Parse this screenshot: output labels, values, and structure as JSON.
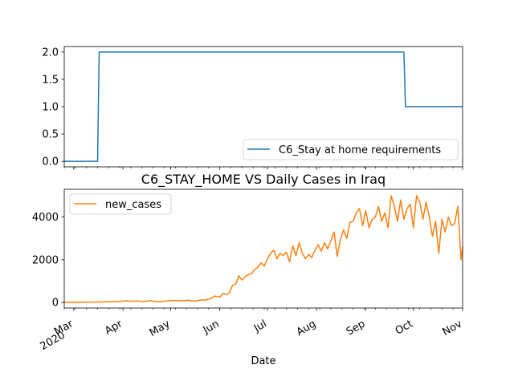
{
  "chart_data": [
    {
      "type": "line",
      "title": "",
      "xlabel": "",
      "ylabel": "",
      "ylim": [
        -0.1,
        2.1
      ],
      "yticks": [
        "0.0",
        "0.5",
        "1.0",
        "1.5",
        "2.0"
      ],
      "ytick_values": [
        0,
        0.5,
        1.0,
        1.5,
        2.0
      ],
      "legend_position": "lower right",
      "grid": false,
      "series": [
        {
          "name": "C6_Stay at home requirements",
          "color": "#1f77b4",
          "points": [
            [
              "2020-02-24",
              0
            ],
            [
              "2020-03-16",
              0
            ],
            [
              "2020-03-17",
              2
            ],
            [
              "2020-09-25",
              2
            ],
            [
              "2020-09-26",
              1
            ],
            [
              "2020-11-01",
              1
            ]
          ]
        }
      ]
    },
    {
      "type": "line",
      "title": "C6_STAY_HOME VS Daily Cases in Iraq",
      "xlabel": "Date",
      "ylabel": "",
      "ylim": [
        -260,
        5300
      ],
      "yticks": [
        "0",
        "2000",
        "4000"
      ],
      "ytick_values": [
        0,
        2000,
        4000
      ],
      "xlim": [
        "2020-02-24",
        "2020-11-01"
      ],
      "xticks": [
        "Mar\n2020",
        "Apr",
        "May",
        "Jun",
        "Jul",
        "Aug",
        "Sep",
        "Oct",
        "Nov"
      ],
      "xtick_dates": [
        "2020-03-01",
        "2020-04-01",
        "2020-05-01",
        "2020-06-01",
        "2020-07-01",
        "2020-08-01",
        "2020-09-01",
        "2020-10-01",
        "2020-11-01"
      ],
      "legend_position": "upper left",
      "grid": false,
      "series": [
        {
          "name": "new_cases",
          "color": "#ff7f0e",
          "points": [
            [
              "2020-02-24",
              1
            ],
            [
              "2020-03-01",
              5
            ],
            [
              "2020-03-08",
              10
            ],
            [
              "2020-03-15",
              20
            ],
            [
              "2020-03-22",
              25
            ],
            [
              "2020-03-29",
              40
            ],
            [
              "2020-04-03",
              80
            ],
            [
              "2020-04-06",
              55
            ],
            [
              "2020-04-10",
              70
            ],
            [
              "2020-04-14",
              40
            ],
            [
              "2020-04-18",
              90
            ],
            [
              "2020-04-22",
              35
            ],
            [
              "2020-04-26",
              50
            ],
            [
              "2020-04-30",
              80
            ],
            [
              "2020-05-04",
              95
            ],
            [
              "2020-05-08",
              80
            ],
            [
              "2020-05-12",
              100
            ],
            [
              "2020-05-16",
              60
            ],
            [
              "2020-05-20",
              120
            ],
            [
              "2020-05-23",
              110
            ],
            [
              "2020-05-26",
              180
            ],
            [
              "2020-05-29",
              300
            ],
            [
              "2020-06-01",
              250
            ],
            [
              "2020-06-03",
              420
            ],
            [
              "2020-06-05",
              370
            ],
            [
              "2020-06-07",
              450
            ],
            [
              "2020-06-09",
              800
            ],
            [
              "2020-06-11",
              850
            ],
            [
              "2020-06-13",
              1250
            ],
            [
              "2020-06-15",
              1050
            ],
            [
              "2020-06-17",
              1200
            ],
            [
              "2020-06-19",
              1300
            ],
            [
              "2020-06-21",
              1350
            ],
            [
              "2020-06-23",
              1550
            ],
            [
              "2020-06-25",
              1650
            ],
            [
              "2020-06-27",
              1850
            ],
            [
              "2020-06-29",
              1700
            ],
            [
              "2020-07-01",
              2050
            ],
            [
              "2020-07-03",
              2300
            ],
            [
              "2020-07-05",
              2450
            ],
            [
              "2020-07-07",
              2050
            ],
            [
              "2020-07-09",
              2300
            ],
            [
              "2020-07-11",
              2200
            ],
            [
              "2020-07-13",
              2350
            ],
            [
              "2020-07-15",
              1900
            ],
            [
              "2020-07-17",
              2650
            ],
            [
              "2020-07-19",
              2200
            ],
            [
              "2020-07-21",
              2800
            ],
            [
              "2020-07-23",
              2300
            ],
            [
              "2020-07-25",
              2050
            ],
            [
              "2020-07-27",
              2250
            ],
            [
              "2020-07-29",
              2100
            ],
            [
              "2020-07-31",
              2450
            ],
            [
              "2020-08-02",
              2700
            ],
            [
              "2020-08-04",
              2400
            ],
            [
              "2020-08-06",
              2800
            ],
            [
              "2020-08-08",
              2500
            ],
            [
              "2020-08-10",
              2900
            ],
            [
              "2020-08-12",
              3300
            ],
            [
              "2020-08-14",
              2150
            ],
            [
              "2020-08-16",
              2950
            ],
            [
              "2020-08-18",
              3400
            ],
            [
              "2020-08-20",
              3000
            ],
            [
              "2020-08-22",
              3750
            ],
            [
              "2020-08-24",
              3800
            ],
            [
              "2020-08-26",
              4200
            ],
            [
              "2020-08-28",
              4400
            ],
            [
              "2020-08-30",
              3600
            ],
            [
              "2020-09-01",
              4300
            ],
            [
              "2020-09-03",
              3500
            ],
            [
              "2020-09-05",
              3900
            ],
            [
              "2020-09-07",
              4000
            ],
            [
              "2020-09-09",
              4500
            ],
            [
              "2020-09-11",
              3800
            ],
            [
              "2020-09-13",
              4200
            ],
            [
              "2020-09-15",
              3500
            ],
            [
              "2020-09-17",
              5000
            ],
            [
              "2020-09-19",
              4500
            ],
            [
              "2020-09-21",
              3800
            ],
            [
              "2020-09-23",
              4800
            ],
            [
              "2020-09-25",
              3900
            ],
            [
              "2020-09-27",
              4400
            ],
            [
              "2020-09-29",
              4600
            ],
            [
              "2020-10-01",
              3500
            ],
            [
              "2020-10-03",
              5000
            ],
            [
              "2020-10-05",
              4700
            ],
            [
              "2020-10-07",
              3900
            ],
            [
              "2020-10-09",
              4700
            ],
            [
              "2020-10-11",
              4000
            ],
            [
              "2020-10-13",
              3100
            ],
            [
              "2020-10-15",
              3800
            ],
            [
              "2020-10-17",
              2300
            ],
            [
              "2020-10-19",
              3900
            ],
            [
              "2020-10-21",
              3300
            ],
            [
              "2020-10-23",
              4000
            ],
            [
              "2020-10-25",
              3600
            ],
            [
              "2020-10-27",
              3700
            ],
            [
              "2020-10-29",
              4500
            ],
            [
              "2020-10-31",
              2000
            ],
            [
              "2020-11-01",
              2600
            ]
          ]
        }
      ]
    }
  ]
}
